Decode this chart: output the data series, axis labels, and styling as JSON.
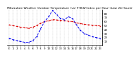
{
  "title": "Milwaukee Weather Outdoor Temperature (vs) THSW Index per Hour (Last 24 Hours)",
  "background_color": "#ffffff",
  "grid_color": "#888888",
  "temp_color": "#dd0000",
  "thsw_color": "#0000ee",
  "hours": [
    0,
    1,
    2,
    3,
    4,
    5,
    6,
    7,
    8,
    9,
    10,
    11,
    12,
    13,
    14,
    15,
    16,
    17,
    18,
    19,
    20,
    21,
    22,
    23
  ],
  "temp_values": [
    52,
    50,
    48,
    46,
    45,
    43,
    46,
    50,
    56,
    60,
    62,
    65,
    64,
    63,
    62,
    61,
    60,
    57,
    55,
    53,
    52,
    51,
    50,
    49
  ],
  "thsw_values": [
    18,
    15,
    12,
    10,
    8,
    8,
    12,
    22,
    42,
    60,
    72,
    88,
    78,
    68,
    65,
    72,
    68,
    52,
    38,
    30,
    26,
    22,
    20,
    18
  ],
  "ylim_min": 0,
  "ylim_max": 90,
  "ytick_positions": [
    10,
    20,
    30,
    40,
    50,
    60,
    70,
    80
  ],
  "ytick_labels": [
    "10",
    "20",
    "30",
    "40",
    "50",
    "60",
    "70",
    "80"
  ],
  "title_fontsize": 3.2,
  "tick_fontsize": 2.8,
  "line_width": 0.7,
  "marker_size": 1.0
}
